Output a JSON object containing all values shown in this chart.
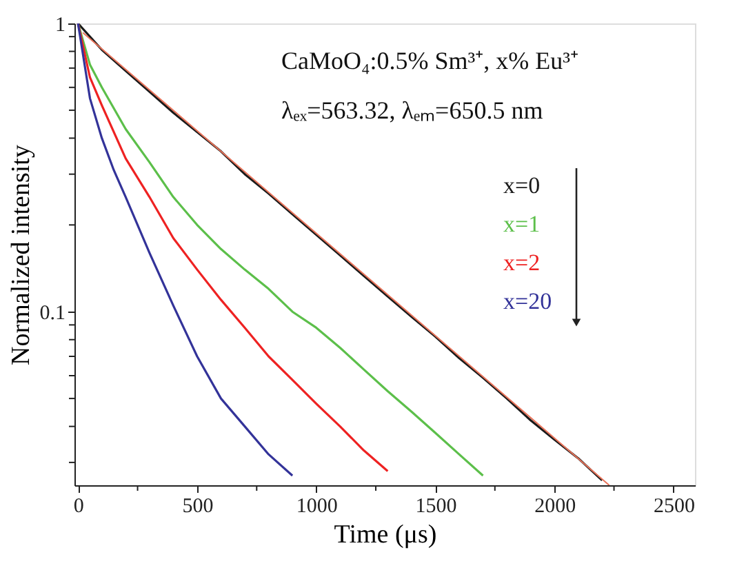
{
  "chart_data": {
    "type": "line",
    "xlabel": "Time (μs)",
    "ylabel": "Normalized intensity",
    "log": "y",
    "xlim": [
      -15,
      2590
    ],
    "ylim": [
      0.025,
      1
    ],
    "xticks": [
      0,
      {
        "value": 250,
        "label": null
      },
      500,
      {
        "value": 750,
        "label": null
      },
      1000,
      {
        "value": 1250,
        "label": null
      },
      1500,
      {
        "value": 1750,
        "label": null
      },
      2000,
      {
        "value": 2250,
        "label": null
      },
      2500
    ],
    "yticks": [
      {
        "value": 0.03,
        "label": null
      },
      {
        "value": 0.04,
        "label": null
      },
      {
        "value": 0.05,
        "label": null
      },
      {
        "value": 0.06,
        "label": null
      },
      {
        "value": 0.07,
        "label": null
      },
      {
        "value": 0.08,
        "label": null
      },
      {
        "value": 0.09,
        "label": null
      },
      0.1,
      {
        "value": 0.2,
        "label": null
      },
      {
        "value": 0.3,
        "label": null
      },
      {
        "value": 0.4,
        "label": null
      },
      {
        "value": 0.5,
        "label": null
      },
      {
        "value": 0.6,
        "label": null
      },
      {
        "value": 0.7,
        "label": null
      },
      {
        "value": 0.8,
        "label": null
      },
      {
        "value": 0.9,
        "label": null
      },
      1
    ],
    "annotations": [
      "CaMoO₄:0.5% Sm³⁺, x% Eu³⁺",
      "λₑₓ=563.32, λₑₘ=650.5 nm"
    ],
    "series": [
      {
        "name": "x=0",
        "color": "#1a1a1a",
        "x": [
          0,
          100,
          200,
          300,
          400,
          500,
          600,
          700,
          800,
          900,
          1000,
          1100,
          1200,
          1300,
          1400,
          1500,
          1600,
          1700,
          1800,
          1900,
          2000,
          2100,
          2200
        ],
        "values": [
          1,
          0.81,
          0.685,
          0.58,
          0.49,
          0.42,
          0.36,
          0.3,
          0.257,
          0.218,
          0.185,
          0.157,
          0.133,
          0.113,
          0.096,
          0.082,
          0.069,
          0.059,
          0.05,
          0.042,
          0.036,
          0.031,
          0.026
        ]
      },
      {
        "name": "x=1",
        "color": "#5cbf4a",
        "x": [
          0,
          50,
          100,
          200,
          300,
          400,
          500,
          600,
          700,
          800,
          900,
          1000,
          1100,
          1200,
          1300,
          1400,
          1500,
          1600,
          1700
        ],
        "values": [
          1,
          0.72,
          0.6,
          0.43,
          0.33,
          0.25,
          0.2,
          0.165,
          0.14,
          0.12,
          0.1,
          0.088,
          0.075,
          0.063,
          0.053,
          0.045,
          0.038,
          0.032,
          0.027
        ]
      },
      {
        "name": "x=2",
        "color": "#ee2222",
        "x": [
          0,
          50,
          100,
          200,
          300,
          400,
          500,
          600,
          700,
          800,
          900,
          1000,
          1100,
          1200,
          1300
        ],
        "values": [
          1,
          0.65,
          0.52,
          0.34,
          0.25,
          0.18,
          0.14,
          0.11,
          0.088,
          0.07,
          0.058,
          0.048,
          0.04,
          0.033,
          0.028
        ]
      },
      {
        "name": "x=20",
        "color": "#333399",
        "x": [
          0,
          50,
          100,
          150,
          200,
          300,
          400,
          500,
          600,
          700,
          800,
          900
        ],
        "values": [
          1,
          0.55,
          0.4,
          0.31,
          0.25,
          0.16,
          0.105,
          0.07,
          0.05,
          0.04,
          0.032,
          0.027
        ]
      },
      {
        "type": "line",
        "color": "#e8735a",
        "x": [
          20,
          2230
        ],
        "values": [
          0.93,
          0.025
        ]
      }
    ]
  }
}
